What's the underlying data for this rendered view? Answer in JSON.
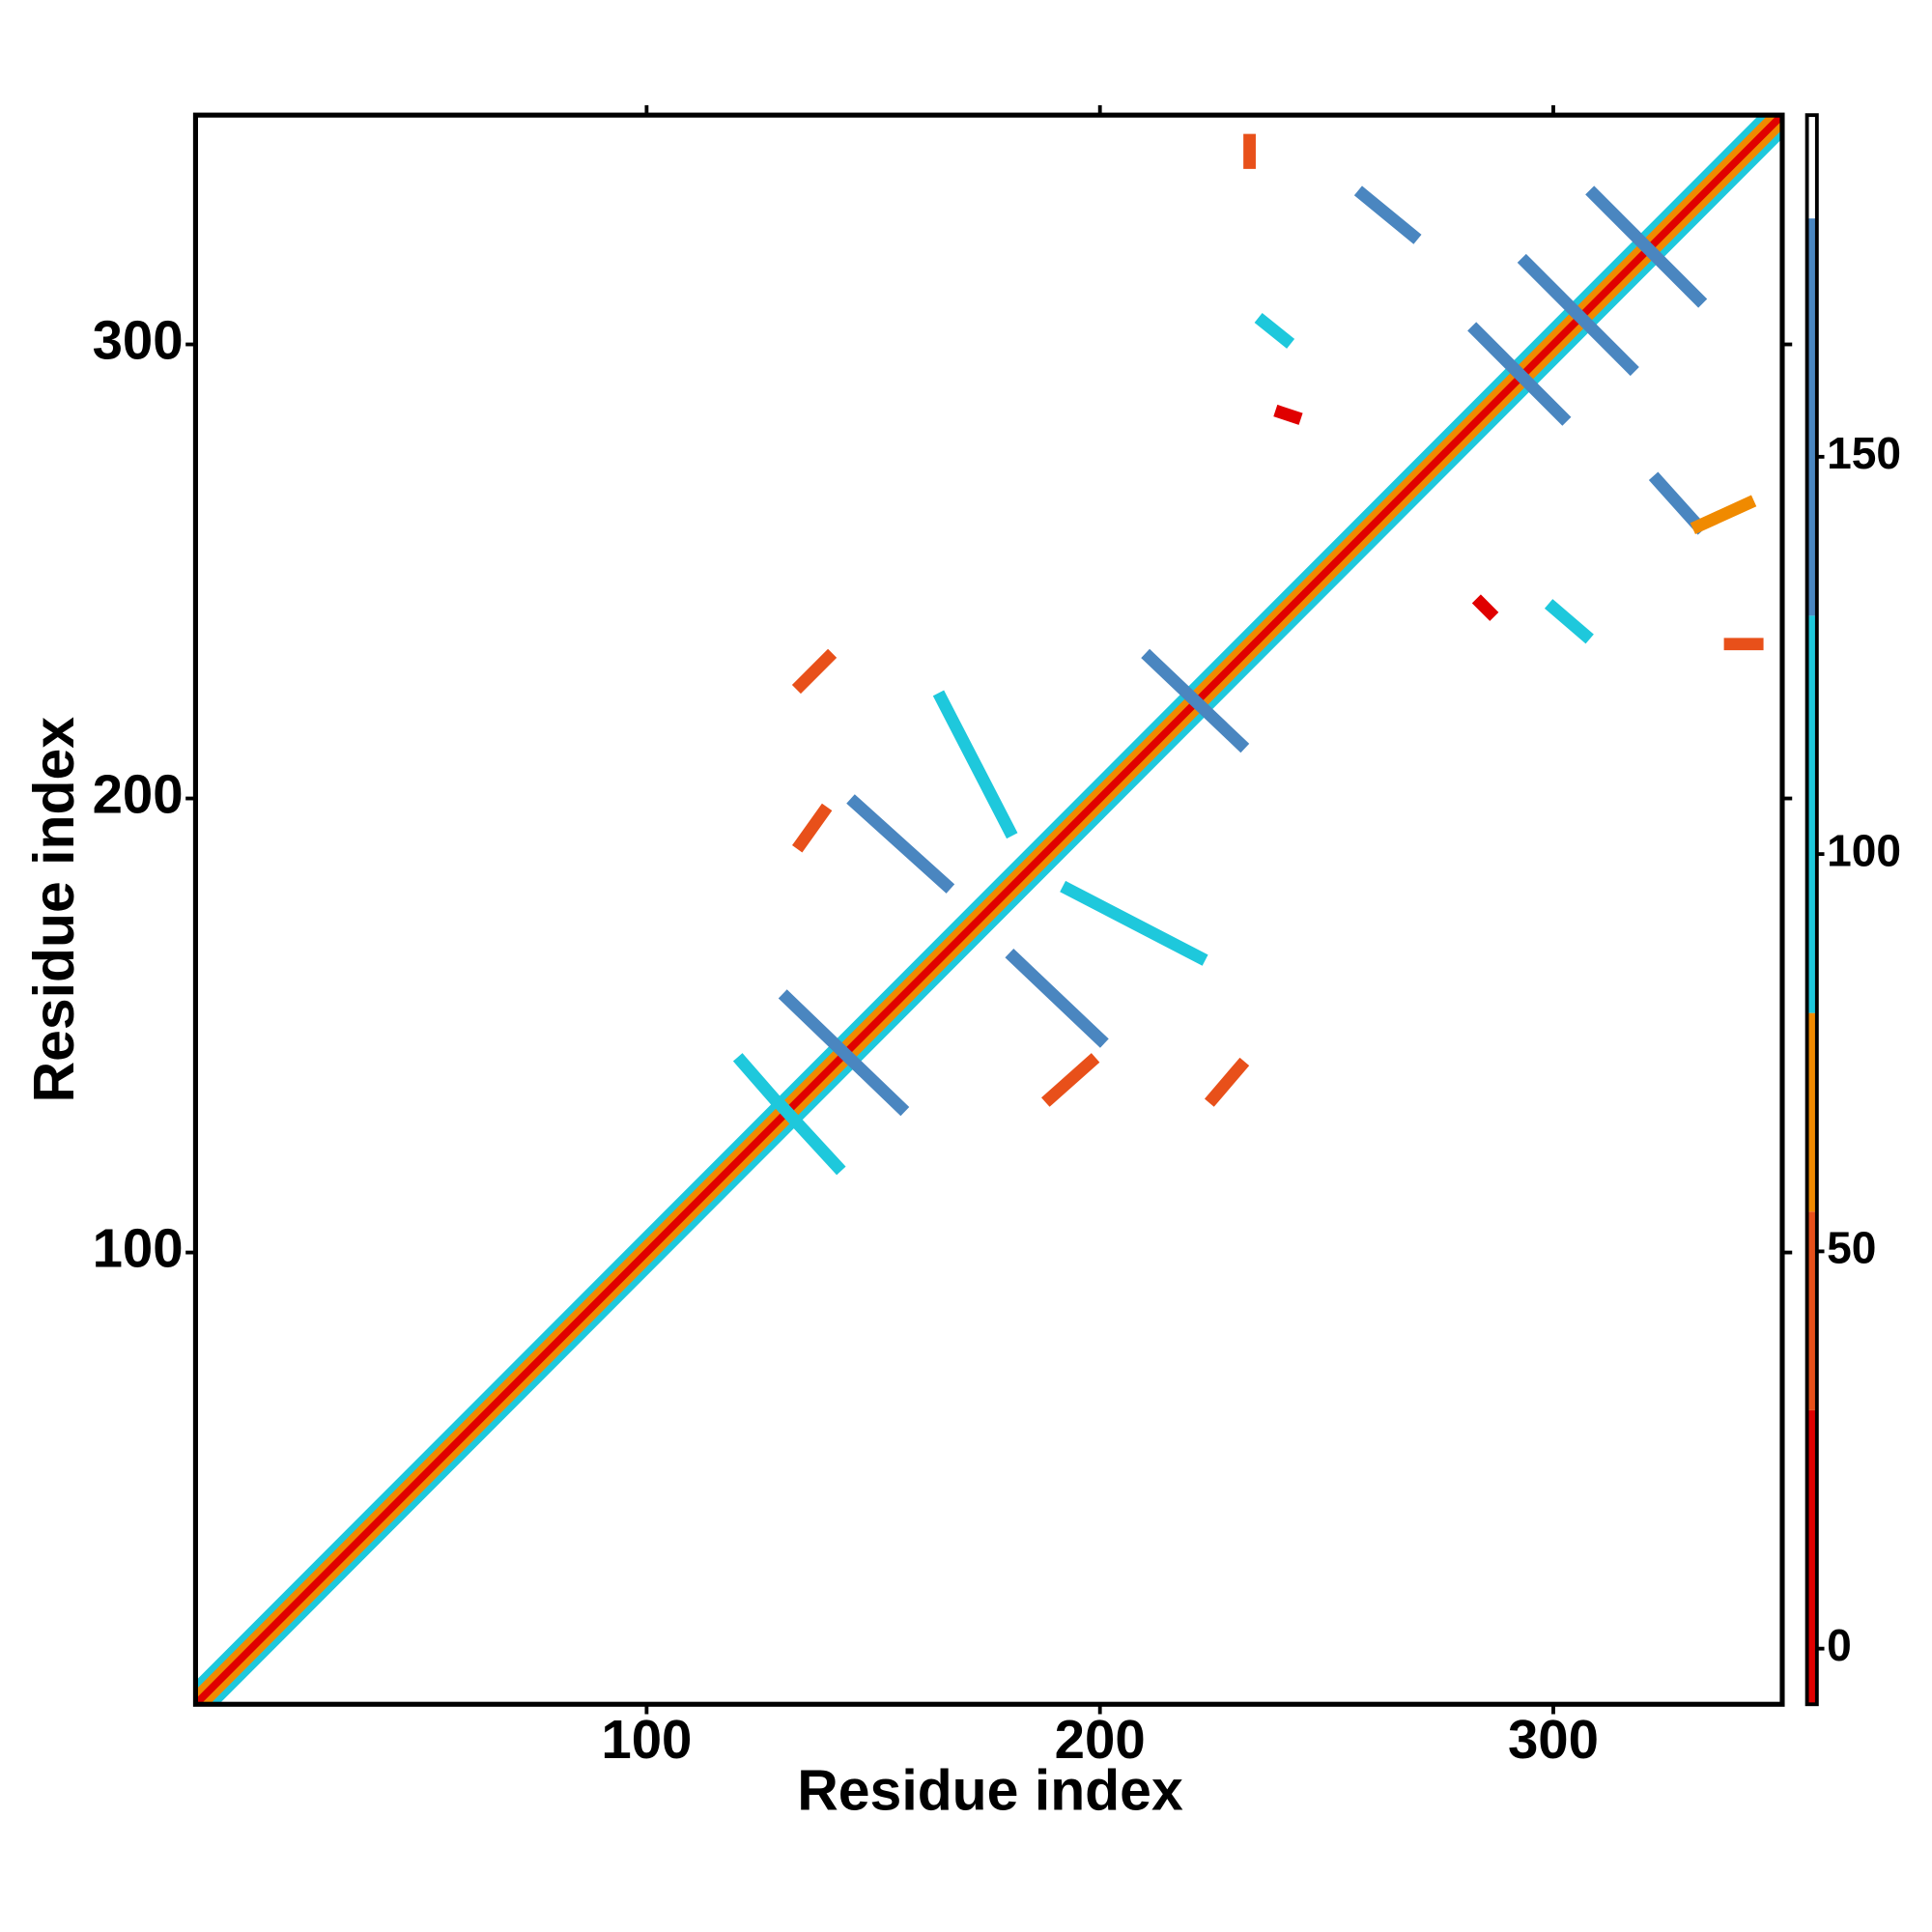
{
  "chart_data": {
    "type": "contact_map",
    "xlabel": "Residue index",
    "ylabel": "Residue index",
    "xlim": [
      0.5,
      350.5
    ],
    "ylim": [
      0.5,
      350.5
    ],
    "xticks": [
      100,
      200,
      300
    ],
    "yticks": [
      100,
      200,
      300
    ],
    "clim": [
      -7,
      193
    ],
    "cticks": [
      0,
      50,
      100,
      150
    ],
    "colorscale": [
      {
        "from": -7,
        "to": 30,
        "color": "#e00000"
      },
      {
        "from": 30,
        "to": 55,
        "color": "#e8501a"
      },
      {
        "from": 55,
        "to": 80,
        "color": "#f08a00"
      },
      {
        "from": 80,
        "to": 130,
        "color": "#1ec8dc"
      },
      {
        "from": 130,
        "to": 180,
        "color": "#4a86c0"
      },
      {
        "from": 180,
        "to": 193,
        "color": "#ffffff"
      }
    ],
    "diagonal_bands": [
      {
        "from": [
          4.5,
          0.5
        ],
        "to": [
          350.5,
          346.5
        ],
        "value": 100
      },
      {
        "from": [
          0.5,
          4.5
        ],
        "to": [
          346.5,
          350.5
        ],
        "value": 100
      },
      {
        "from": [
          2.5,
          0.5
        ],
        "to": [
          350.5,
          348.5
        ],
        "value": 65
      },
      {
        "from": [
          0.5,
          2.5
        ],
        "to": [
          348.5,
          350.5
        ],
        "value": 65
      },
      {
        "from": [
          0.5,
          0.5
        ],
        "to": [
          350.5,
          350.5
        ],
        "value": 10
      }
    ],
    "contacts": [
      {
        "from": [
          131,
          156
        ],
        "to": [
          156,
          132
        ],
        "value": 150
      },
      {
        "from": [
          211,
          231
        ],
        "to": [
          231,
          212
        ],
        "value": 150
      },
      {
        "from": [
          146,
          199
        ],
        "to": [
          166,
          181
        ],
        "value": 150
      },
      {
        "from": [
          181,
          165
        ],
        "to": [
          200,
          147
        ],
        "value": 150
      },
      {
        "from": [
          165,
          222
        ],
        "to": [
          180,
          193
        ],
        "value": 110
      },
      {
        "from": [
          193,
          180
        ],
        "to": [
          222,
          165
        ],
        "value": 110
      },
      {
        "from": [
          294,
          318
        ],
        "to": [
          317,
          295
        ],
        "value": 150
      },
      {
        "from": [
          283,
          303
        ],
        "to": [
          302,
          284
        ],
        "value": 150
      },
      {
        "from": [
          309,
          333
        ],
        "to": [
          332,
          310
        ],
        "value": 150
      },
      {
        "from": [
          258,
          333
        ],
        "to": [
          269,
          324
        ],
        "value": 150
      },
      {
        "from": [
          323,
          270
        ],
        "to": [
          332,
          260
        ],
        "value": 150
      },
      {
        "from": [
          300,
          242
        ],
        "to": [
          307,
          236
        ],
        "value": 110
      },
      {
        "from": [
          236,
          305
        ],
        "to": [
          241,
          301
        ],
        "value": 110
      },
      {
        "from": [
          121,
          142
        ],
        "to": [
          128,
          134
        ],
        "value": 110
      },
      {
        "from": [
          130,
          132
        ],
        "to": [
          142,
          119
        ],
        "value": 110
      },
      {
        "from": [
          240,
          285
        ],
        "to": [
          243,
          284
        ],
        "value": 20
      },
      {
        "from": [
          284,
          243
        ],
        "to": [
          286,
          241
        ],
        "value": 20
      },
      {
        "from": [
          134,
          190
        ],
        "to": [
          139,
          197
        ],
        "value": 40
      },
      {
        "from": [
          189,
          134
        ],
        "to": [
          198,
          142
        ],
        "value": 40
      },
      {
        "from": [
          225,
          134
        ],
        "to": [
          231,
          141
        ],
        "value": 40
      },
      {
        "from": [
          134,
          225
        ],
        "to": [
          140,
          231
        ],
        "value": 40
      },
      {
        "from": [
          233,
          345
        ],
        "to": [
          233,
          340
        ],
        "value": 40
      },
      {
        "from": [
          339,
          234
        ],
        "to": [
          345,
          234
        ],
        "value": 40
      },
      {
        "from": [
          332,
          260
        ],
        "to": [
          343,
          265
        ],
        "value": 65
      }
    ]
  }
}
